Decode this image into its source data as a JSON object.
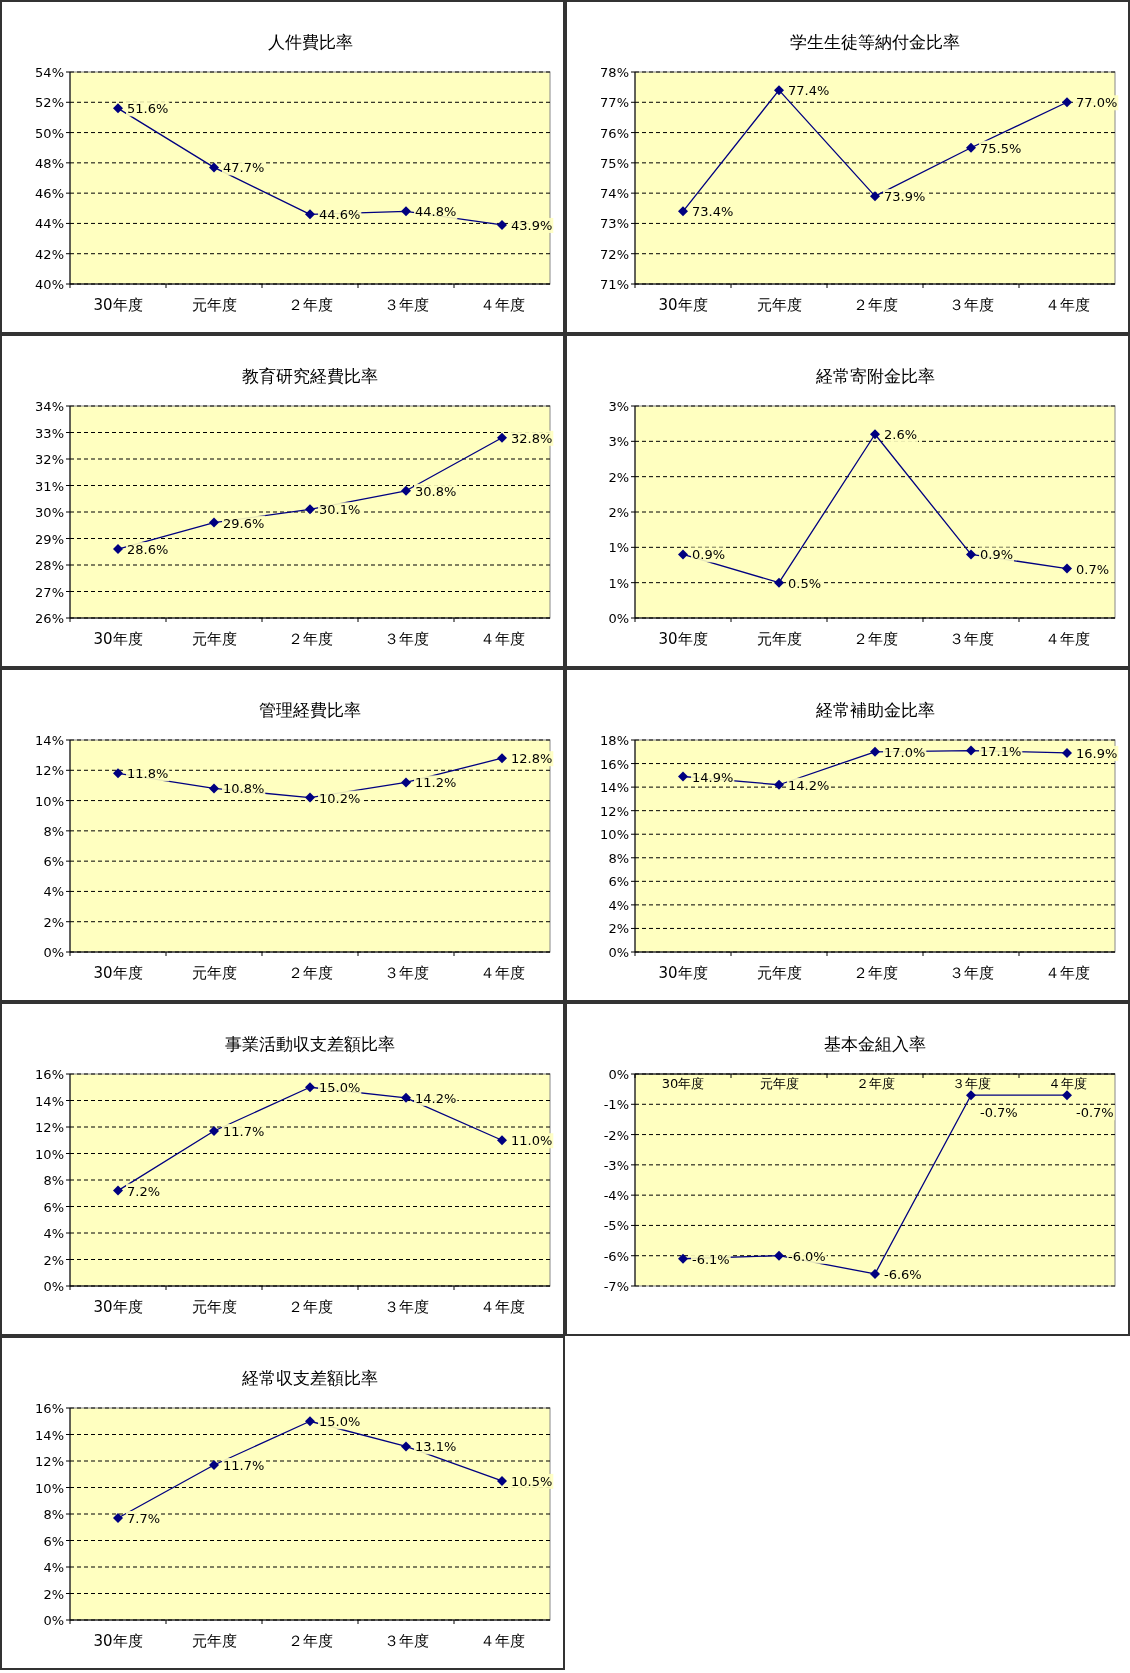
{
  "chart_data": [
    {
      "type": "line",
      "title": "人件費比率",
      "categories": [
        "30年度",
        "元年度",
        "２年度",
        "３年度",
        "４年度"
      ],
      "series": [
        {
          "color": "#000080",
          "values": [
            51.6,
            47.7,
            44.6,
            44.8,
            43.9
          ],
          "value_labels": [
            "51.6%",
            "47.7%",
            "44.6%",
            "44.8%",
            "43.9%"
          ]
        }
      ],
      "ylim": [
        40,
        54
      ],
      "yticks": [
        {
          "value": 40,
          "label": "40%"
        },
        {
          "value": 42,
          "label": "42%"
        },
        {
          "value": 44,
          "label": "44%"
        },
        {
          "value": 46,
          "label": "46%"
        },
        {
          "value": 48,
          "label": "48%"
        },
        {
          "value": 50,
          "label": "50%"
        },
        {
          "value": 52,
          "label": "52%"
        },
        {
          "value": 54,
          "label": "54%"
        }
      ],
      "grid": "y",
      "marker": "diamond",
      "line_style": "solid"
    },
    {
      "type": "line",
      "title": "学生生徒等納付金比率",
      "categories": [
        "30年度",
        "元年度",
        "２年度",
        "３年度",
        "４年度"
      ],
      "series": [
        {
          "color": "#000080",
          "values": [
            73.4,
            77.4,
            73.9,
            75.5,
            77.0
          ],
          "value_labels": [
            "73.4%",
            "77.4%",
            "73.9%",
            "75.5%",
            "77.0%"
          ]
        }
      ],
      "ylim": [
        71,
        78
      ],
      "yticks": [
        {
          "value": 71,
          "label": "71%"
        },
        {
          "value": 72,
          "label": "72%"
        },
        {
          "value": 73,
          "label": "73%"
        },
        {
          "value": 74,
          "label": "74%"
        },
        {
          "value": 75,
          "label": "75%"
        },
        {
          "value": 76,
          "label": "76%"
        },
        {
          "value": 77,
          "label": "77%"
        },
        {
          "value": 78,
          "label": "78%"
        }
      ],
      "grid": "y",
      "marker": "diamond",
      "line_style": "solid"
    },
    {
      "type": "line",
      "title": "教育研究経費比率",
      "categories": [
        "30年度",
        "元年度",
        "２年度",
        "３年度",
        "４年度"
      ],
      "series": [
        {
          "color": "#000080",
          "values": [
            28.6,
            29.6,
            30.1,
            30.8,
            32.8
          ],
          "value_labels": [
            "28.6%",
            "29.6%",
            "30.1%",
            "30.8%",
            "32.8%"
          ]
        }
      ],
      "ylim": [
        26,
        34
      ],
      "yticks": [
        {
          "value": 26,
          "label": "26%"
        },
        {
          "value": 27,
          "label": "27%"
        },
        {
          "value": 28,
          "label": "28%"
        },
        {
          "value": 29,
          "label": "29%"
        },
        {
          "value": 30,
          "label": "30%"
        },
        {
          "value": 31,
          "label": "31%"
        },
        {
          "value": 32,
          "label": "32%"
        },
        {
          "value": 33,
          "label": "33%"
        },
        {
          "value": 34,
          "label": "34%"
        }
      ],
      "grid": "y",
      "marker": "diamond",
      "line_style": "solid"
    },
    {
      "type": "line",
      "title": "経常寄附金比率",
      "categories": [
        "30年度",
        "元年度",
        "２年度",
        "３年度",
        "４年度"
      ],
      "series": [
        {
          "color": "#000080",
          "values": [
            0.9,
            0.5,
            2.6,
            0.9,
            0.7
          ],
          "value_labels": [
            "0.9%",
            "0.5%",
            "2.6%",
            "0.9%",
            "0.7%"
          ]
        }
      ],
      "ylim": [
        0,
        3
      ],
      "yticks": [
        {
          "value": 0,
          "label": "0%"
        },
        {
          "value": 0.5,
          "label": "1%"
        },
        {
          "value": 1,
          "label": "1%"
        },
        {
          "value": 1.5,
          "label": "2%"
        },
        {
          "value": 2,
          "label": "2%"
        },
        {
          "value": 2.5,
          "label": "3%"
        },
        {
          "value": 3,
          "label": "3%"
        }
      ],
      "grid": "y",
      "marker": "diamond",
      "line_style": "solid"
    },
    {
      "type": "line",
      "title": "管理経費比率",
      "categories": [
        "30年度",
        "元年度",
        "２年度",
        "３年度",
        "４年度"
      ],
      "series": [
        {
          "color": "#000080",
          "values": [
            11.8,
            10.8,
            10.2,
            11.2,
            12.8
          ],
          "value_labels": [
            "11.8%",
            "10.8%",
            "10.2%",
            "11.2%",
            "12.8%"
          ]
        }
      ],
      "ylim": [
        0,
        14
      ],
      "yticks": [
        {
          "value": 0,
          "label": "0%"
        },
        {
          "value": 2,
          "label": "2%"
        },
        {
          "value": 4,
          "label": "4%"
        },
        {
          "value": 6,
          "label": "6%"
        },
        {
          "value": 8,
          "label": "8%"
        },
        {
          "value": 10,
          "label": "10%"
        },
        {
          "value": 12,
          "label": "12%"
        },
        {
          "value": 14,
          "label": "14%"
        }
      ],
      "grid": "y",
      "marker": "diamond",
      "line_style": "solid"
    },
    {
      "type": "line",
      "title": "経常補助金比率",
      "categories": [
        "30年度",
        "元年度",
        "２年度",
        "３年度",
        "４年度"
      ],
      "series": [
        {
          "color": "#000080",
          "values": [
            14.9,
            14.2,
            17.0,
            17.1,
            16.9
          ],
          "value_labels": [
            "14.9%",
            "14.2%",
            "17.0%",
            "17.1%",
            "16.9%"
          ]
        }
      ],
      "ylim": [
        0,
        18
      ],
      "yticks": [
        {
          "value": 0,
          "label": "0%"
        },
        {
          "value": 2,
          "label": "2%"
        },
        {
          "value": 4,
          "label": "4%"
        },
        {
          "value": 6,
          "label": "6%"
        },
        {
          "value": 8,
          "label": "8%"
        },
        {
          "value": 10,
          "label": "10%"
        },
        {
          "value": 12,
          "label": "12%"
        },
        {
          "value": 14,
          "label": "14%"
        },
        {
          "value": 16,
          "label": "16%"
        },
        {
          "value": 18,
          "label": "18%"
        }
      ],
      "grid": "y",
      "marker": "diamond",
      "line_style": "solid"
    },
    {
      "type": "line",
      "title": "事業活動収支差額比率",
      "categories": [
        "30年度",
        "元年度",
        "２年度",
        "３年度",
        "４年度"
      ],
      "series": [
        {
          "color": "#000080",
          "values": [
            7.2,
            11.7,
            15.0,
            14.2,
            11.0
          ],
          "value_labels": [
            "7.2%",
            "11.7%",
            "15.0%",
            "14.2%",
            "11.0%"
          ]
        }
      ],
      "ylim": [
        0,
        16
      ],
      "yticks": [
        {
          "value": 0,
          "label": "0%"
        },
        {
          "value": 2,
          "label": "2%"
        },
        {
          "value": 4,
          "label": "4%"
        },
        {
          "value": 6,
          "label": "6%"
        },
        {
          "value": 8,
          "label": "8%"
        },
        {
          "value": 10,
          "label": "10%"
        },
        {
          "value": 12,
          "label": "12%"
        },
        {
          "value": 14,
          "label": "14%"
        },
        {
          "value": 16,
          "label": "16%"
        }
      ],
      "grid": "y",
      "marker": "diamond",
      "line_style": "solid"
    },
    {
      "type": "line",
      "title": "基本金組入率",
      "categories": [
        "30年度",
        "元年度",
        "２年度",
        "３年度",
        "４年度"
      ],
      "series": [
        {
          "color": "#000080",
          "values": [
            -6.1,
            -6.0,
            -6.6,
            -0.7,
            -0.7
          ],
          "value_labels": [
            "-6.1%",
            "-6.0%",
            "-6.6%",
            "-0.7%",
            "-0.7%"
          ]
        }
      ],
      "ylim": [
        -7,
        0
      ],
      "yticks": [
        {
          "value": -7,
          "label": "-7%"
        },
        {
          "value": -6,
          "label": "-6%"
        },
        {
          "value": -5,
          "label": "-5%"
        },
        {
          "value": -4,
          "label": "-4%"
        },
        {
          "value": -3,
          "label": "-3%"
        },
        {
          "value": -2,
          "label": "-2%"
        },
        {
          "value": -1,
          "label": "-1%"
        },
        {
          "value": 0,
          "label": "0%"
        }
      ],
      "grid": "y",
      "marker": "diamond",
      "line_style": "solid"
    },
    {
      "type": "line",
      "title": "経常収支差額比率",
      "categories": [
        "30年度",
        "元年度",
        "２年度",
        "３年度",
        "４年度"
      ],
      "series": [
        {
          "color": "#000080",
          "values": [
            7.7,
            11.7,
            15.0,
            13.1,
            10.5
          ],
          "value_labels": [
            "7.7%",
            "11.7%",
            "15.0%",
            "13.1%",
            "10.5%"
          ]
        }
      ],
      "ylim": [
        0,
        16
      ],
      "yticks": [
        {
          "value": 0,
          "label": "0%"
        },
        {
          "value": 2,
          "label": "2%"
        },
        {
          "value": 4,
          "label": "4%"
        },
        {
          "value": 6,
          "label": "6%"
        },
        {
          "value": 8,
          "label": "8%"
        },
        {
          "value": 10,
          "label": "10%"
        },
        {
          "value": 12,
          "label": "12%"
        },
        {
          "value": 14,
          "label": "14%"
        },
        {
          "value": 16,
          "label": "16%"
        }
      ],
      "grid": "y",
      "marker": "diamond",
      "line_style": "solid"
    }
  ]
}
